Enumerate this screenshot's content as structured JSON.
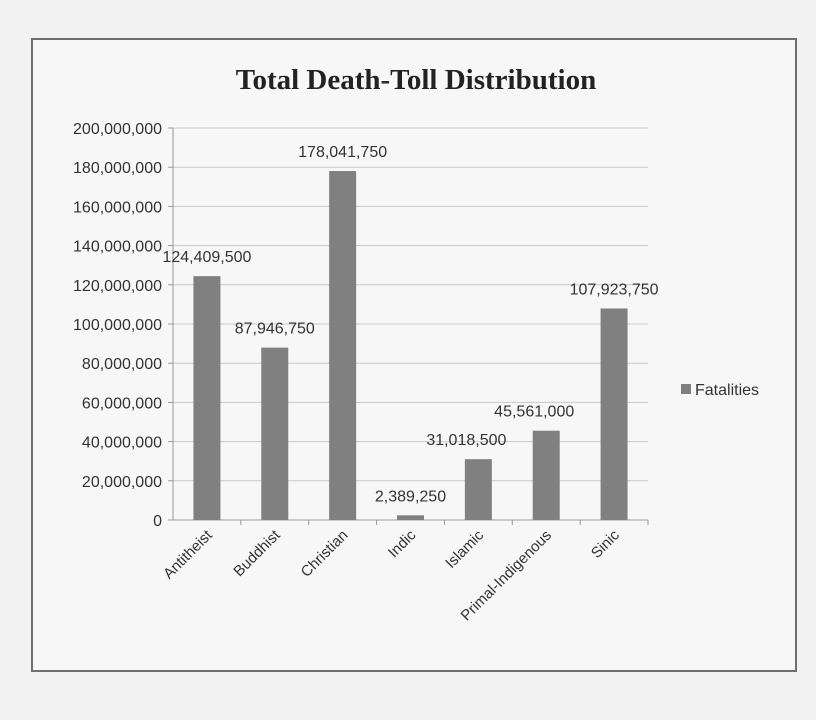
{
  "chart_data": {
    "type": "bar",
    "title": "Total Death-Toll Distribution",
    "xlabel": "",
    "ylabel": "",
    "categories": [
      "Antitheist",
      "Buddhist",
      "Christian",
      "Indic",
      "Islamic",
      "Primal-Indigenous",
      "Sinic"
    ],
    "series": [
      {
        "name": "Fatalities",
        "values": [
          124409500,
          87946750,
          178041750,
          2389250,
          31018500,
          45561000,
          107923750
        ],
        "labels": [
          "124,409,500",
          "87,946,750",
          "178,041,750",
          "2,389,250",
          "31,018,500",
          "45,561,000",
          "107,923,750"
        ]
      }
    ],
    "yticks": [
      "0",
      "20,000,000",
      "40,000,000",
      "60,000,000",
      "80,000,000",
      "100,000,000",
      "120,000,000",
      "140,000,000",
      "160,000,000",
      "180,000,000",
      "200,000,000"
    ],
    "ylim": [
      0,
      200000000
    ],
    "grid": true,
    "legend_position": "right",
    "colors": {
      "bar": "#808080",
      "grid": "#c8c8c8",
      "axis": "#999999"
    }
  }
}
